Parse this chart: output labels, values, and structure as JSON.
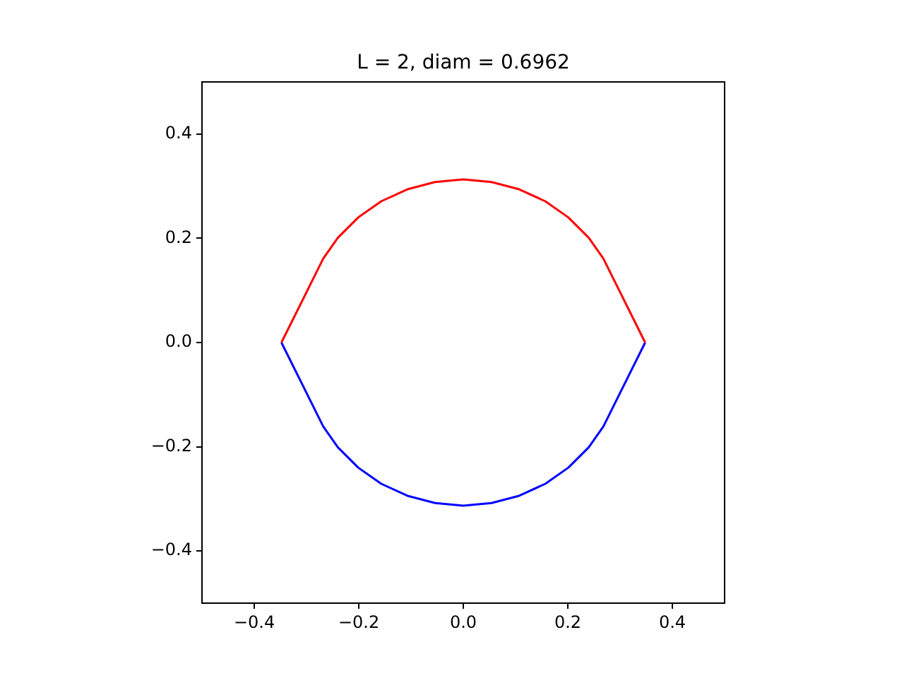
{
  "chart_data": {
    "type": "line",
    "title": "L = 2, diam = 0.6962",
    "xlim": [
      -0.5,
      0.5
    ],
    "ylim": [
      -0.5,
      0.5
    ],
    "xticks": [
      {
        "value": -0.4,
        "label": "−0.4"
      },
      {
        "value": -0.2,
        "label": "−0.2"
      },
      {
        "value": 0,
        "label": "0.0"
      },
      {
        "value": 0.2,
        "label": "0.2"
      },
      {
        "value": 0.4,
        "label": "0.4"
      }
    ],
    "yticks": [
      {
        "value": -0.4,
        "label": "−0.4"
      },
      {
        "value": -0.2,
        "label": "−0.2"
      },
      {
        "value": 0,
        "label": "0.0"
      },
      {
        "value": 0.2,
        "label": "0.2"
      },
      {
        "value": 0.4,
        "label": "0.4"
      }
    ],
    "grid": false,
    "legend": false,
    "marker": "none",
    "line_style": "solid",
    "series": [
      {
        "color": "#ff0000",
        "x": [
          -0.348,
          -0.268,
          -0.24,
          -0.201,
          -0.157,
          -0.107,
          -0.054,
          0,
          0.054,
          0.107,
          0.157,
          0.201,
          0.24,
          0.268,
          0.348
        ],
        "values": [
          0,
          0.161,
          0.201,
          0.24,
          0.271,
          0.294,
          0.308,
          0.313,
          0.308,
          0.294,
          0.271,
          0.24,
          0.201,
          0.161,
          0
        ]
      },
      {
        "color": "#0000ff",
        "x": [
          -0.348,
          -0.268,
          -0.24,
          -0.201,
          -0.157,
          -0.107,
          -0.054,
          0,
          0.054,
          0.107,
          0.157,
          0.201,
          0.24,
          0.268,
          0.348
        ],
        "values": [
          0,
          -0.161,
          -0.201,
          -0.24,
          -0.271,
          -0.294,
          -0.308,
          -0.313,
          -0.308,
          -0.294,
          -0.271,
          -0.24,
          -0.201,
          -0.161,
          0
        ]
      }
    ]
  }
}
